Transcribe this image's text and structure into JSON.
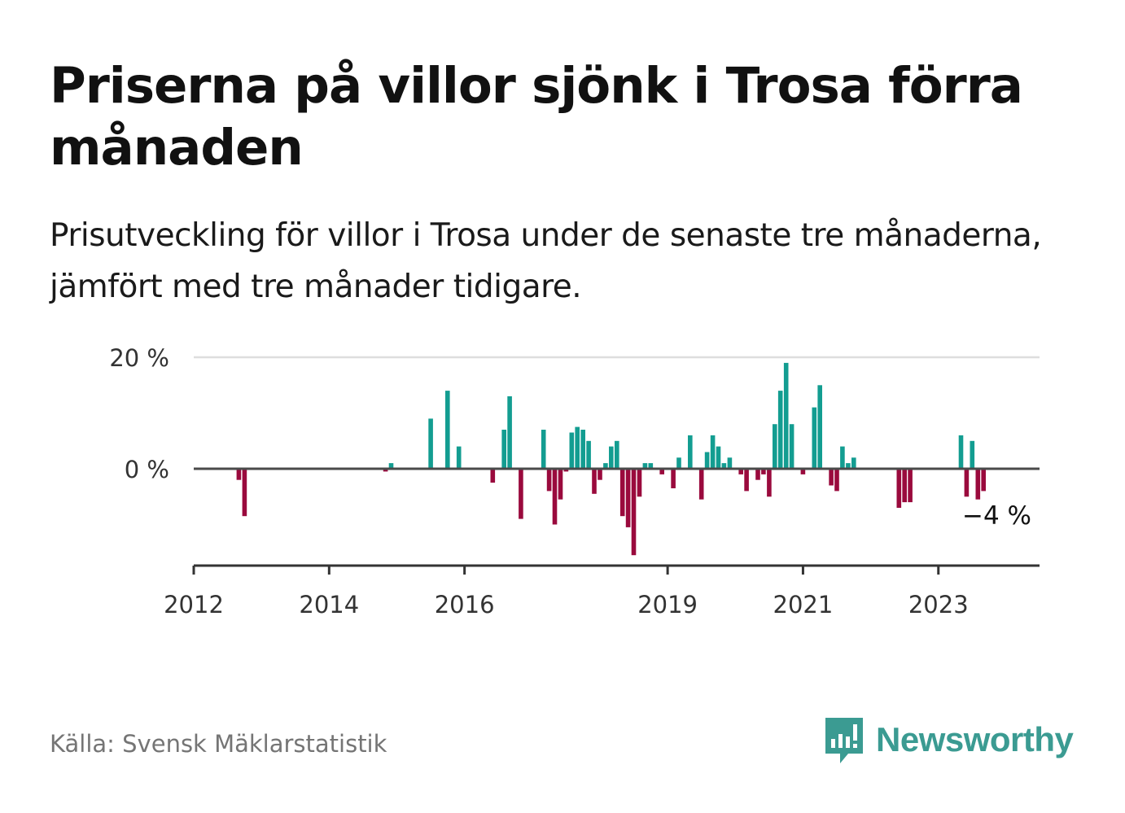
{
  "title": "Priserna på villor sjönk i Trosa förra månaden",
  "subtitle": "Prisutveckling för villor i Trosa under de senaste tre månaderna, jämfört med tre månader tidigare.",
  "source": "Källa: Svensk Mäklarstatistik",
  "brand": "Newsworthy",
  "colors": {
    "positive": "#139d91",
    "negative": "#9a0a3d",
    "brand": "#3b9b92",
    "source_text": "#757575"
  },
  "chart_data": {
    "type": "bar",
    "title": "Priserna på villor sjönk i Trosa förra månaden",
    "subtitle": "Prisutveckling för villor i Trosa under de senaste tre månaderna, jämfört med tre månader tidigare.",
    "x_start": "2012-01",
    "x_end": "2024-06",
    "x_tick_labels": [
      "2012",
      "2014",
      "2016",
      "2019",
      "2021",
      "2023"
    ],
    "y_ticks": [
      0,
      20
    ],
    "y_tick_labels": [
      "0 %",
      "20 %"
    ],
    "ylim": [
      -17.5,
      20
    ],
    "grid": true,
    "last_value_label": "−4 %",
    "series": [
      {
        "unit": "%",
        "points": [
          {
            "month": "2012-09",
            "value": -2
          },
          {
            "month": "2012-10",
            "value": -8.5
          },
          {
            "month": "2014-11",
            "value": -0.5
          },
          {
            "month": "2014-12",
            "value": 1
          },
          {
            "month": "2015-07",
            "value": 9
          },
          {
            "month": "2015-10",
            "value": 14
          },
          {
            "month": "2015-12",
            "value": 4
          },
          {
            "month": "2016-06",
            "value": -2.5
          },
          {
            "month": "2016-08",
            "value": 7
          },
          {
            "month": "2016-09",
            "value": 13
          },
          {
            "month": "2016-11",
            "value": -9
          },
          {
            "month": "2017-03",
            "value": 7
          },
          {
            "month": "2017-04",
            "value": -4
          },
          {
            "month": "2017-05",
            "value": -10
          },
          {
            "month": "2017-06",
            "value": -5.5
          },
          {
            "month": "2017-07",
            "value": -0.5
          },
          {
            "month": "2017-08",
            "value": 6.5
          },
          {
            "month": "2017-09",
            "value": 7.5
          },
          {
            "month": "2017-10",
            "value": 7
          },
          {
            "month": "2017-11",
            "value": 5
          },
          {
            "month": "2017-12",
            "value": -4.5
          },
          {
            "month": "2018-01",
            "value": -2
          },
          {
            "month": "2018-02",
            "value": 1
          },
          {
            "month": "2018-03",
            "value": 4
          },
          {
            "month": "2018-04",
            "value": 5
          },
          {
            "month": "2018-05",
            "value": -8.5
          },
          {
            "month": "2018-06",
            "value": -10.5
          },
          {
            "month": "2018-07",
            "value": -15.5
          },
          {
            "month": "2018-08",
            "value": -5
          },
          {
            "month": "2018-09",
            "value": 1
          },
          {
            "month": "2018-10",
            "value": 1
          },
          {
            "month": "2018-12",
            "value": -1
          },
          {
            "month": "2019-02",
            "value": -3.5
          },
          {
            "month": "2019-03",
            "value": 2
          },
          {
            "month": "2019-05",
            "value": 6
          },
          {
            "month": "2019-07",
            "value": -5.5
          },
          {
            "month": "2019-08",
            "value": 3
          },
          {
            "month": "2019-09",
            "value": 6
          },
          {
            "month": "2019-10",
            "value": 4
          },
          {
            "month": "2019-11",
            "value": 1
          },
          {
            "month": "2019-12",
            "value": 2
          },
          {
            "month": "2020-02",
            "value": -1
          },
          {
            "month": "2020-03",
            "value": -4
          },
          {
            "month": "2020-05",
            "value": -2
          },
          {
            "month": "2020-06",
            "value": -1
          },
          {
            "month": "2020-07",
            "value": -5
          },
          {
            "month": "2020-08",
            "value": 8
          },
          {
            "month": "2020-09",
            "value": 14
          },
          {
            "month": "2020-10",
            "value": 19
          },
          {
            "month": "2020-11",
            "value": 8
          },
          {
            "month": "2021-01",
            "value": -1
          },
          {
            "month": "2021-03",
            "value": 11
          },
          {
            "month": "2021-04",
            "value": 15
          },
          {
            "month": "2021-06",
            "value": -3
          },
          {
            "month": "2021-07",
            "value": -4
          },
          {
            "month": "2021-08",
            "value": 4
          },
          {
            "month": "2021-09",
            "value": 1
          },
          {
            "month": "2021-10",
            "value": 2
          },
          {
            "month": "2022-06",
            "value": -7
          },
          {
            "month": "2022-07",
            "value": -6
          },
          {
            "month": "2022-08",
            "value": -6
          },
          {
            "month": "2023-05",
            "value": 6
          },
          {
            "month": "2023-06",
            "value": -5
          },
          {
            "month": "2023-07",
            "value": 5
          },
          {
            "month": "2023-08",
            "value": -5.5
          },
          {
            "month": "2023-09",
            "value": -4
          }
        ]
      }
    ]
  }
}
